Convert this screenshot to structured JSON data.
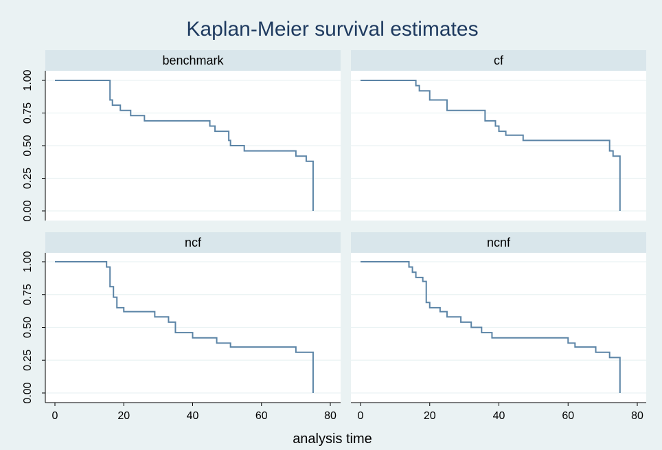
{
  "chart_data": {
    "type": "line",
    "title": "Kaplan-Meier survival estimates",
    "xlabel": "analysis time",
    "ylabel": "",
    "xlim": [
      0,
      80
    ],
    "ylim": [
      0,
      1
    ],
    "x_ticks": [
      "0",
      "20",
      "40",
      "60",
      "80"
    ],
    "y_ticks": [
      "0.00",
      "0.25",
      "0.50",
      "0.75",
      "1.00"
    ],
    "grid": true,
    "line_color": "#5b84a6",
    "panels": [
      {
        "name": "benchmark",
        "steps": [
          [
            0,
            1.0
          ],
          [
            16,
            0.85
          ],
          [
            16.7,
            0.81
          ],
          [
            19,
            0.77
          ],
          [
            22,
            0.73
          ],
          [
            26,
            0.69
          ],
          [
            45,
            0.65
          ],
          [
            46.5,
            0.61
          ],
          [
            50.5,
            0.54
          ],
          [
            51,
            0.5
          ],
          [
            55,
            0.46
          ],
          [
            70,
            0.42
          ],
          [
            73,
            0.38
          ],
          [
            75,
            0.0
          ]
        ]
      },
      {
        "name": "cf",
        "steps": [
          [
            0,
            1.0
          ],
          [
            16,
            0.96
          ],
          [
            17,
            0.92
          ],
          [
            20,
            0.85
          ],
          [
            25,
            0.77
          ],
          [
            36,
            0.69
          ],
          [
            39,
            0.65
          ],
          [
            40,
            0.61
          ],
          [
            42,
            0.58
          ],
          [
            47,
            0.54
          ],
          [
            72,
            0.46
          ],
          [
            73,
            0.42
          ],
          [
            75,
            0.0
          ]
        ]
      },
      {
        "name": "ncf",
        "steps": [
          [
            0,
            1.0
          ],
          [
            15,
            0.96
          ],
          [
            16,
            0.81
          ],
          [
            17,
            0.73
          ],
          [
            18,
            0.65
          ],
          [
            20,
            0.62
          ],
          [
            29,
            0.58
          ],
          [
            33,
            0.54
          ],
          [
            35,
            0.46
          ],
          [
            40,
            0.42
          ],
          [
            47,
            0.38
          ],
          [
            51,
            0.35
          ],
          [
            70,
            0.31
          ],
          [
            75,
            0.0
          ]
        ]
      },
      {
        "name": "ncnf",
        "steps": [
          [
            0,
            1.0
          ],
          [
            14,
            0.96
          ],
          [
            15,
            0.92
          ],
          [
            16,
            0.88
          ],
          [
            18,
            0.85
          ],
          [
            19,
            0.69
          ],
          [
            20,
            0.65
          ],
          [
            23,
            0.62
          ],
          [
            25,
            0.58
          ],
          [
            29,
            0.54
          ],
          [
            32,
            0.5
          ],
          [
            35,
            0.46
          ],
          [
            38,
            0.42
          ],
          [
            60,
            0.38
          ],
          [
            62,
            0.35
          ],
          [
            68,
            0.31
          ],
          [
            72,
            0.27
          ],
          [
            75,
            0.0
          ]
        ]
      }
    ]
  }
}
